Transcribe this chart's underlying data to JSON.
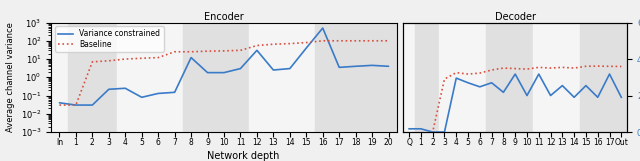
{
  "title_encoder": "Encoder",
  "title_decoder": "Decoder",
  "xlabel": "Network depth",
  "ylabel": "Average channel variance",
  "ylabel_right": "",
  "enc_labels": [
    "In",
    "1",
    "2",
    "3",
    "4",
    "5",
    "6",
    "7",
    "8",
    "9",
    "10",
    "11",
    "12",
    "13",
    "14",
    "15",
    "16",
    "17",
    "18",
    "19",
    "20"
  ],
  "dec_labels": [
    "Q",
    "1",
    "2",
    "3",
    "4",
    "5",
    "6",
    "7",
    "8",
    "9",
    "10",
    "11",
    "12",
    "13",
    "14",
    "15",
    "16",
    "17",
    "Out"
  ],
  "enc_blue": [
    0.04,
    0.03,
    0.03,
    0.22,
    0.25,
    0.08,
    0.13,
    0.15,
    12.0,
    1.8,
    1.8,
    3.0,
    30.0,
    2.5,
    3.0,
    40.0,
    500.0,
    3.5,
    4.0,
    4.5,
    4.0
  ],
  "enc_red": [
    0.03,
    0.03,
    7.0,
    8.0,
    10.0,
    11.0,
    12.0,
    25.0,
    25.0,
    27.0,
    28.0,
    30.0,
    55.0,
    65.0,
    70.0,
    80.0,
    100.0,
    100.0,
    100.0,
    100.0,
    100.0
  ],
  "dec_blue_log": [
    0.0015,
    0.0015,
    0.001,
    0.001,
    0.9,
    0.5,
    0.3,
    0.5,
    0.15,
    1.5,
    0.1,
    1.5,
    0.1,
    0.35,
    0.08,
    0.35,
    0.08,
    1.5,
    0.08
  ],
  "dec_red_log": [
    0.0008,
    0.0008,
    0.001,
    0.8,
    1.8,
    1.5,
    1.7,
    2.5,
    3.2,
    3.0,
    2.8,
    3.5,
    3.2,
    3.5,
    3.2,
    4.0,
    4.1,
    4.0,
    3.9
  ],
  "color_blue": "#3a7bc8",
  "color_red": "#d94f3d",
  "bg_light": "#e8e8e8",
  "bg_white": "#f5f5f5",
  "enc_shading": [
    [
      0,
      1,
      "white"
    ],
    [
      1,
      4,
      "gray"
    ],
    [
      4,
      8,
      "white"
    ],
    [
      8,
      12,
      "gray"
    ],
    [
      12,
      16,
      "white"
    ],
    [
      16,
      21,
      "gray"
    ]
  ],
  "dec_shading": [
    [
      0,
      1,
      "white"
    ],
    [
      1,
      3,
      "gray"
    ],
    [
      3,
      7,
      "white"
    ],
    [
      7,
      11,
      "gray"
    ],
    [
      11,
      15,
      "white"
    ],
    [
      15,
      19,
      "gray"
    ]
  ]
}
